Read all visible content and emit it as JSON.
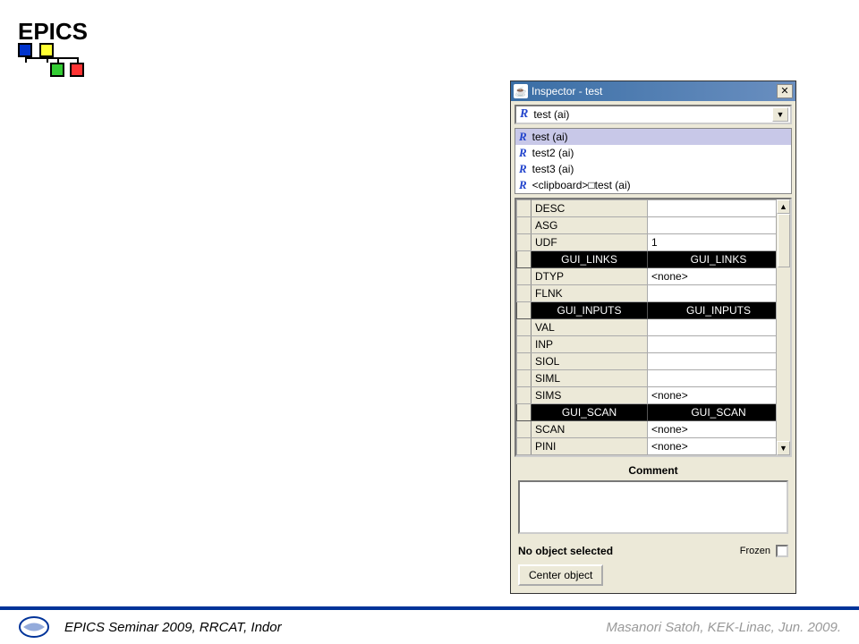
{
  "page": {
    "title": "EPICS",
    "footer_left": "EPICS Seminar 2009, RRCAT, Indor",
    "footer_right": "Masanori Satoh, KEK-Linac, Jun. 2009.",
    "logo_colors": {
      "blue": "#0033cc",
      "yellow": "#ffff33",
      "green": "#33cc33",
      "red": "#ff3333"
    },
    "footer_line_color": "#003399"
  },
  "inspector": {
    "window_title": "Inspector - test",
    "selected": "test (ai)",
    "dropdown_items": [
      {
        "label": "test (ai)",
        "selected": true
      },
      {
        "label": "test2 (ai)",
        "selected": false
      },
      {
        "label": "test3 (ai)",
        "selected": false
      },
      {
        "label": "<clipboard>□test (ai)",
        "selected": false
      }
    ],
    "rows": [
      {
        "type": "prop",
        "name": "DESC",
        "value": ""
      },
      {
        "type": "prop",
        "name": "ASG",
        "value": ""
      },
      {
        "type": "prop",
        "name": "UDF",
        "value": "1"
      },
      {
        "type": "section",
        "left": "GUI_LINKS",
        "right": "GUI_LINKS"
      },
      {
        "type": "prop",
        "name": "DTYP",
        "value": "<none>"
      },
      {
        "type": "prop",
        "name": "FLNK",
        "value": ""
      },
      {
        "type": "section",
        "left": "GUI_INPUTS",
        "right": "GUI_INPUTS"
      },
      {
        "type": "prop",
        "name": "VAL",
        "value": ""
      },
      {
        "type": "prop",
        "name": "INP",
        "value": ""
      },
      {
        "type": "prop",
        "name": "SIOL",
        "value": ""
      },
      {
        "type": "prop",
        "name": "SIML",
        "value": ""
      },
      {
        "type": "prop",
        "name": "SIMS",
        "value": "<none>"
      },
      {
        "type": "section",
        "left": "GUI_SCAN",
        "right": "GUI_SCAN"
      },
      {
        "type": "prop",
        "name": "SCAN",
        "value": "<none>"
      },
      {
        "type": "prop",
        "name": "PINI",
        "value": "<none>"
      }
    ],
    "comment_label": "Comment",
    "status_text": "No object selected",
    "frozen_label": "Frozen",
    "center_button": "Center object"
  },
  "styles": {
    "titlebar_gradient": [
      "#3a6ea5",
      "#6a8fc0"
    ],
    "panel_bg": "#ece9d8",
    "section_bg": "#000000",
    "section_fg": "#ffffff",
    "selected_item_bg": "#c8c8e8",
    "r_icon_color": "#2244cc"
  }
}
